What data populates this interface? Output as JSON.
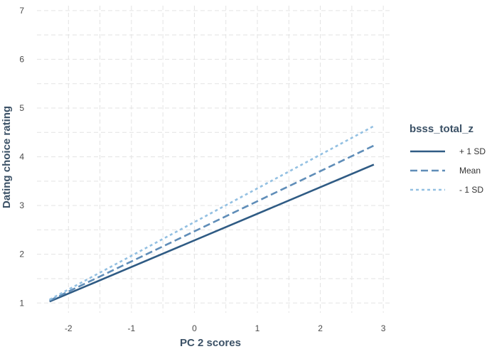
{
  "chart_data": {
    "type": "line",
    "title": "",
    "xlabel": "PC 2 scores",
    "ylabel": "Dating choice rating",
    "xlim": [
      -2.5,
      3.1
    ],
    "ylim": [
      0.8,
      7.1
    ],
    "x_ticks": [
      -2,
      -1,
      0,
      1,
      2,
      3
    ],
    "y_ticks": [
      1,
      2,
      3,
      4,
      5,
      6,
      7
    ],
    "x_tick_labels": [
      "-2",
      "-1",
      "0",
      "1",
      "2",
      "3"
    ],
    "y_tick_labels": [
      "1",
      "2",
      "3",
      "4",
      "5",
      "6",
      "7"
    ],
    "grid": true,
    "legend": {
      "title": "bsss_total_z",
      "position": "right"
    },
    "series": [
      {
        "name": "+ 1 SD",
        "x": [
          -2.3,
          2.85
        ],
        "y": [
          1.03,
          3.84
        ],
        "color": "#2f5b84",
        "style": "solid"
      },
      {
        "name": "Mean",
        "x": [
          -2.3,
          2.85
        ],
        "y": [
          1.05,
          4.23
        ],
        "color": "#5f8db8",
        "style": "dashed"
      },
      {
        "name": "- 1 SD",
        "x": [
          -2.3,
          2.85
        ],
        "y": [
          1.07,
          4.63
        ],
        "color": "#93c0e2",
        "style": "dotted"
      }
    ]
  }
}
